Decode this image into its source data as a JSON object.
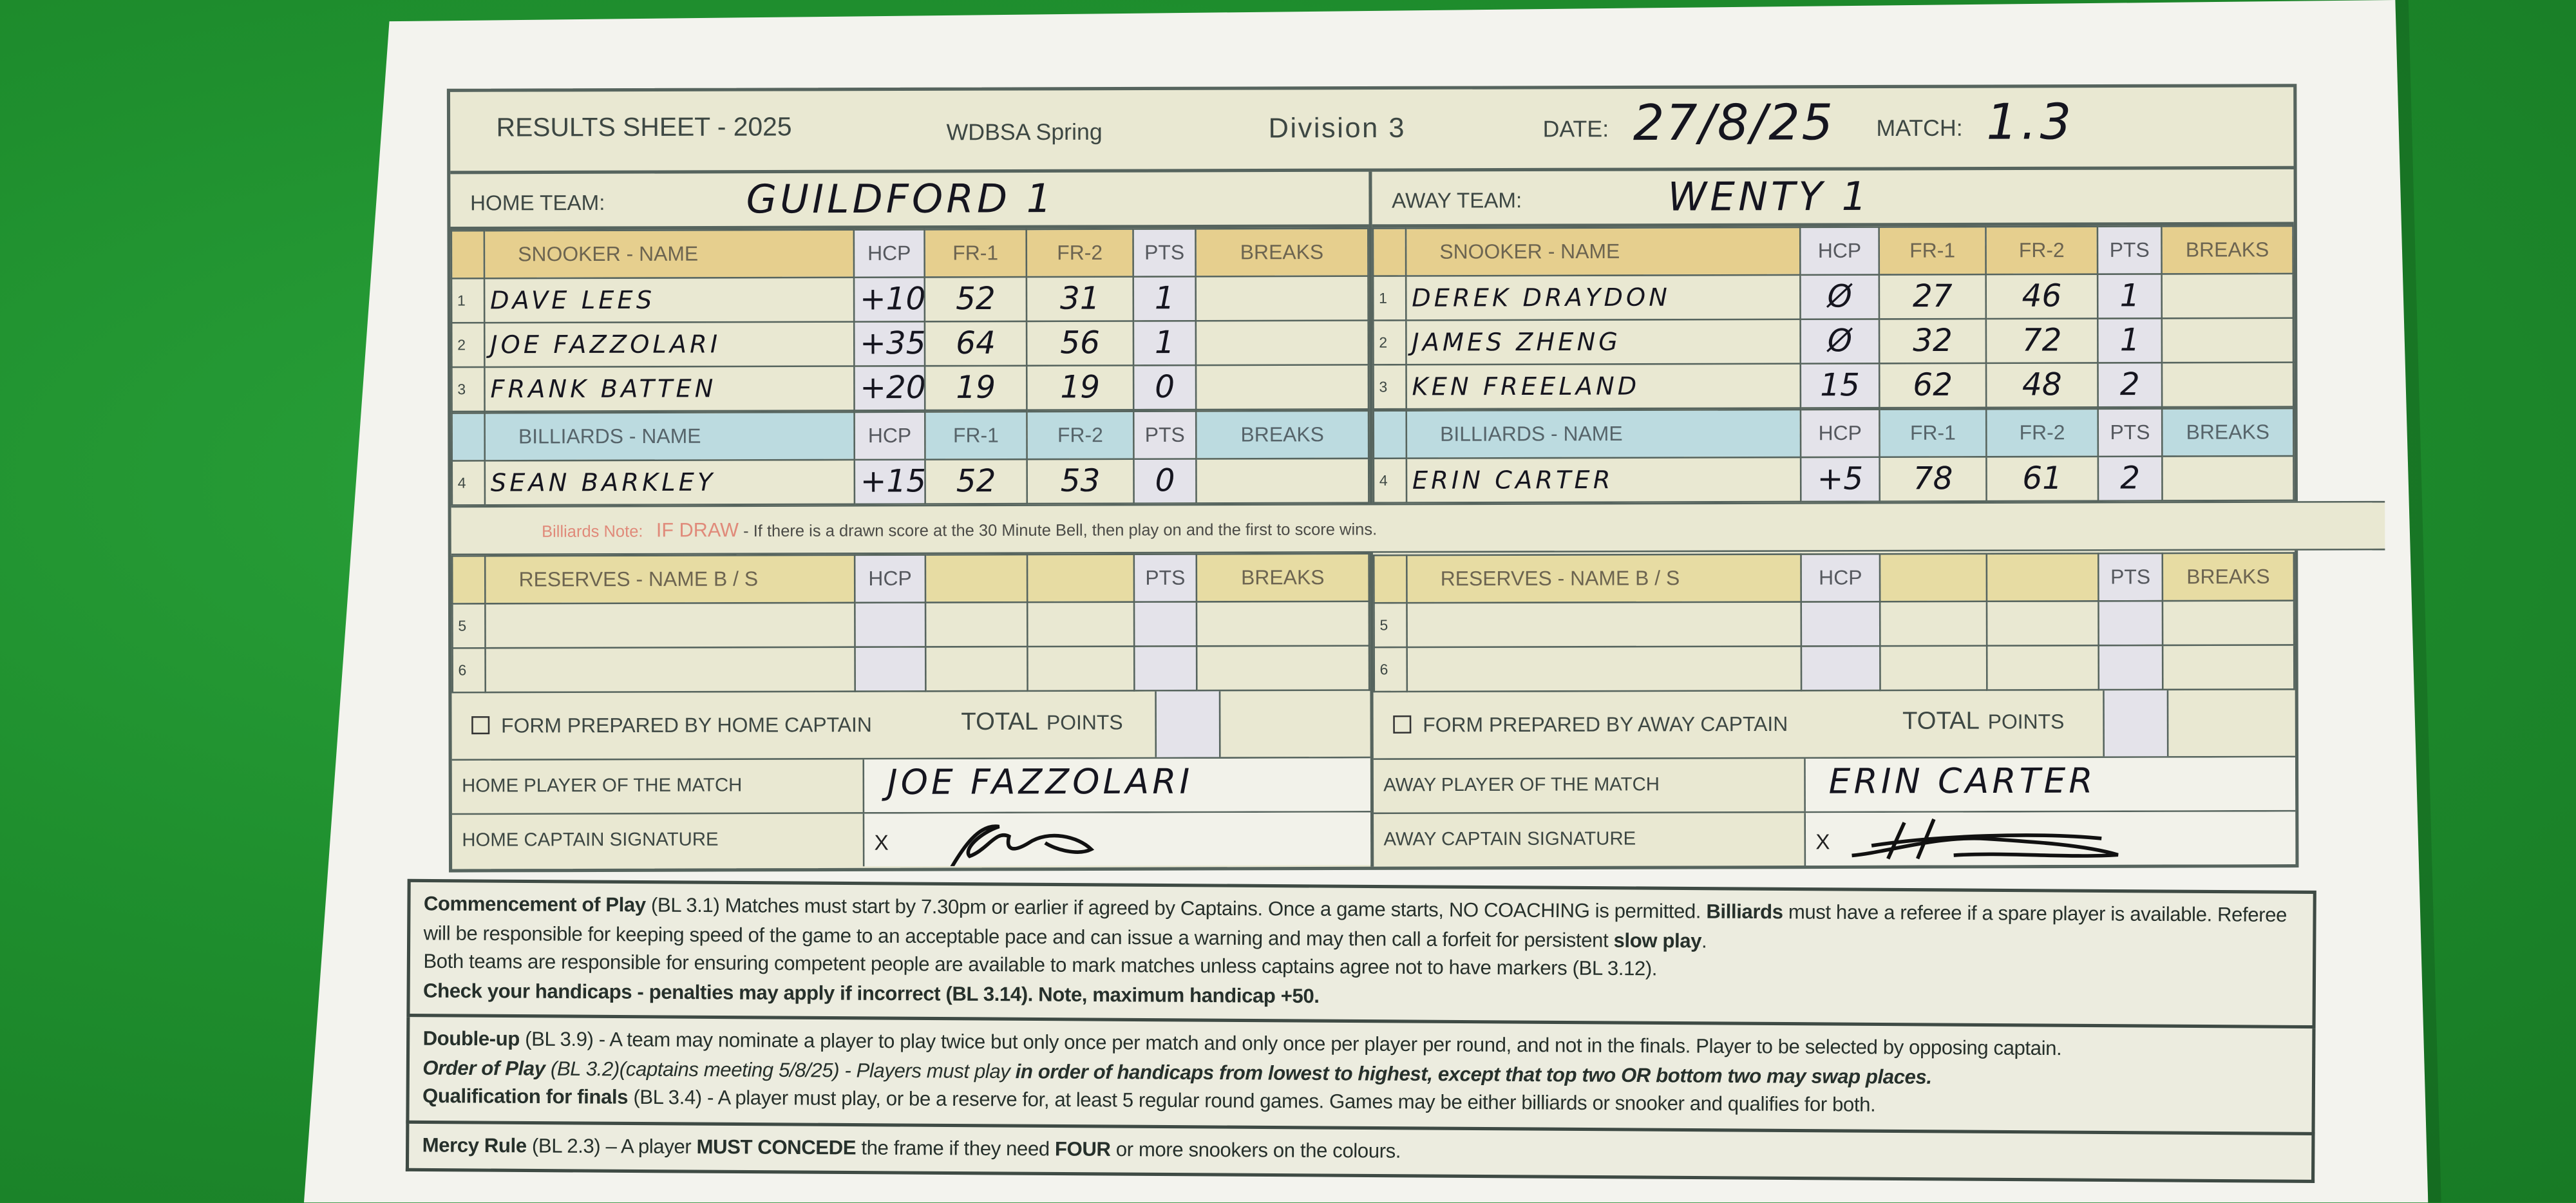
{
  "header": {
    "title": "RESULTS SHEET - 2025",
    "league": "WDBSA Spring",
    "division": "Division 3",
    "date_label": "DATE:",
    "date": "27/8/25",
    "match_label": "MATCH:",
    "match": "1.3"
  },
  "home": {
    "team_label": "HOME TEAM:",
    "team": "Guildford 1",
    "snooker_header": {
      "name": "SNOOKER  -  NAME",
      "hcp": "HCP",
      "fr1": "FR-1",
      "fr2": "FR-2",
      "pts": "PTS",
      "breaks": "BREAKS"
    },
    "snooker": [
      {
        "num": "1",
        "name": "Dave Lees",
        "hcp": "+10",
        "fr1": "52",
        "fr2": "31",
        "pts": "1",
        "breaks": ""
      },
      {
        "num": "2",
        "name": "Joe Fazzolari",
        "hcp": "+35",
        "fr1": "64",
        "fr2": "56",
        "pts": "1",
        "breaks": ""
      },
      {
        "num": "3",
        "name": "Frank Batten",
        "hcp": "+20",
        "fr1": "19",
        "fr2": "19",
        "pts": "0",
        "breaks": ""
      }
    ],
    "billiards_header": {
      "name": "BILLIARDS  -    NAME",
      "hcp": "HCP",
      "fr1": "FR-1",
      "fr2": "FR-2",
      "pts": "PTS",
      "breaks": "BREAKS"
    },
    "billiards": [
      {
        "num": "4",
        "name": "Sean Barkley",
        "hcp": "+15",
        "fr1": "52",
        "fr2": "53",
        "pts": "0",
        "breaks": ""
      }
    ],
    "reserves_header": {
      "name": "RESERVES  -  NAME B / S",
      "hcp": "HCP",
      "fr1": "",
      "fr2": "",
      "pts": "PTS",
      "breaks": "BREAKS"
    },
    "reserves": [
      {
        "num": "5",
        "name": "",
        "hcp": "",
        "fr1": "",
        "fr2": "",
        "pts": "",
        "breaks": ""
      },
      {
        "num": "6",
        "name": "",
        "hcp": "",
        "fr1": "",
        "fr2": "",
        "pts": "",
        "breaks": ""
      }
    ],
    "form_prepared": "FORM PREPARED BY HOME CAPTAIN",
    "total": "TOTAL",
    "points": "POINTS",
    "player_of_match_label": "HOME PLAYER OF THE MATCH",
    "player_of_match": "Joe Fazzolari",
    "captain_sig_label": "HOME CAPTAIN SIGNATURE",
    "captain_sig_x": "X"
  },
  "away": {
    "team_label": "AWAY TEAM:",
    "team": "Wenty 1",
    "snooker_header": {
      "name": "SNOOKER  -  NAME",
      "hcp": "HCP",
      "fr1": "FR-1",
      "fr2": "FR-2",
      "pts": "PTS",
      "breaks": "BREAKS"
    },
    "snooker": [
      {
        "num": "1",
        "name": "Derek Draydon",
        "hcp": "Ø",
        "fr1": "27",
        "fr2": "46",
        "pts": "1",
        "breaks": ""
      },
      {
        "num": "2",
        "name": "James Zheng",
        "hcp": "Ø",
        "fr1": "32",
        "fr2": "72",
        "pts": "1",
        "breaks": ""
      },
      {
        "num": "3",
        "name": "Ken Freeland",
        "hcp": "15",
        "fr1": "62",
        "fr2": "48",
        "pts": "2",
        "breaks": ""
      }
    ],
    "billiards_header": {
      "name": "BILLIARDS  -    NAME",
      "hcp": "HCP",
      "fr1": "FR-1",
      "fr2": "FR-2",
      "pts": "PTS",
      "breaks": "BREAKS"
    },
    "billiards": [
      {
        "num": "4",
        "name": "Erin Carter",
        "hcp": "+5",
        "fr1": "78",
        "fr2": "61",
        "pts": "2",
        "breaks": ""
      }
    ],
    "reserves_header": {
      "name": "RESERVES  -  NAME B / S",
      "hcp": "HCP",
      "fr1": "",
      "fr2": "",
      "pts": "PTS",
      "breaks": "BREAKS"
    },
    "reserves": [
      {
        "num": "5",
        "name": "",
        "hcp": "",
        "fr1": "",
        "fr2": "",
        "pts": "",
        "breaks": ""
      },
      {
        "num": "6",
        "name": "",
        "hcp": "",
        "fr1": "",
        "fr2": "",
        "pts": "",
        "breaks": ""
      }
    ],
    "form_prepared": "FORM PREPARED BY AWAY CAPTAIN",
    "total": "TOTAL",
    "points": "POINTS",
    "player_of_match_label": "AWAY PLAYER OF THE MATCH",
    "player_of_match": "Erin Carter",
    "captain_sig_label": "AWAY CAPTAIN SIGNATURE",
    "captain_sig_x": "X"
  },
  "note": {
    "prefix": "Billiards Note:",
    "draw": "IF DRAW",
    "text": " - If there is a drawn score at the 30 Minute Bell, then play on and the first to score wins."
  },
  "rules": [
    [
      [
        {
          "t": "Commencement of Play",
          "s": "b"
        },
        {
          "t": " (BL 3.1) Matches must start by 7.30pm or earlier if agreed by Captains. Once a game starts, NO COACHING is permitted. "
        },
        {
          "t": "Billiards",
          "s": "b"
        },
        {
          "t": " must have a referee if a spare player is available. Referee will be responsible for keeping speed of the game to an acceptable pace and can issue a warning and may then call a forfeit for persistent "
        },
        {
          "t": "slow play",
          "s": "b"
        },
        {
          "t": "."
        }
      ],
      [
        {
          "t": "Both teams are responsible for ensuring competent people are available to mark matches unless captains agree not to have markers (BL 3.12)."
        }
      ],
      [
        {
          "t": "Check your handicaps - penalties may apply if incorrect (BL 3.14). Note, maximum handicap +50.",
          "s": "b"
        }
      ]
    ],
    [
      [
        {
          "t": "Double-up",
          "s": "b"
        },
        {
          "t": " (BL 3.9) - A team may nominate a player to play twice but only once per match and only once per player per round, and not in the finals. Player to be selected by opposing captain."
        }
      ],
      [
        {
          "t": "Order of Play",
          "s": "bi"
        },
        {
          "t": " (BL 3.2)(captains meeting 5/8/25) - Players must play ",
          "s": "i"
        },
        {
          "t": "in order of handicaps from lowest to highest, except that top two OR bottom two may swap places.",
          "s": "bi"
        }
      ],
      [
        {
          "t": "Qualification for finals",
          "s": "b"
        },
        {
          "t": " (BL 3.4) - A player must play, or be a reserve for, at least 5 regular round games. Games may be either billiards or snooker and qualifies for both."
        }
      ]
    ],
    [
      [
        {
          "t": "Mercy Rule",
          "s": "b"
        },
        {
          "t": " (BL 2.3) – A player "
        },
        {
          "t": "MUST CONCEDE",
          "s": "b"
        },
        {
          "t": " the frame if they need "
        },
        {
          "t": "FOUR",
          "s": "b"
        },
        {
          "t": " or more snookers on the colours."
        }
      ]
    ]
  ],
  "colors": {
    "table_green": "#1f8f2e",
    "snooker_header": "#e6cf8e",
    "billiards_header": "#bcdbe0",
    "cell_cream": "#e9e8d2",
    "hcp_pts_cell": "#e4e3ea",
    "note_red": "#e08a7a"
  }
}
